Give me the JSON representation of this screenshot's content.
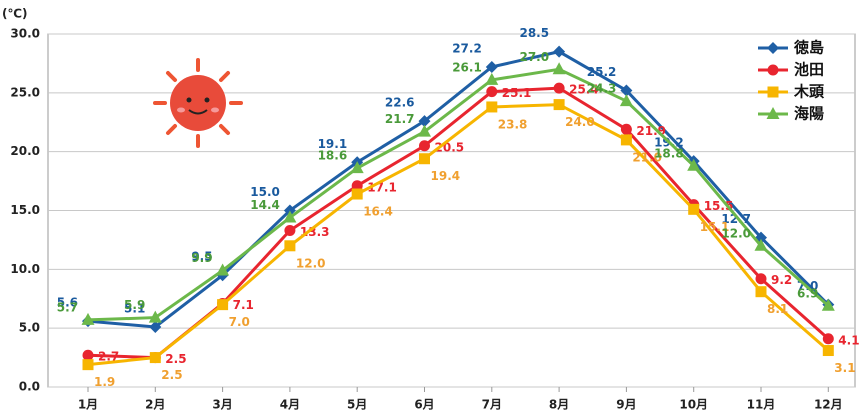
{
  "chart_data": {
    "type": "line",
    "y_label": "(℃)",
    "categories": [
      "1月",
      "2月",
      "3月",
      "4月",
      "5月",
      "6月",
      "7月",
      "8月",
      "9月",
      "10月",
      "11月",
      "12月"
    ],
    "ylim": [
      0,
      30
    ],
    "yticks": [
      {
        "value": 0,
        "label": "0.0"
      },
      {
        "value": 5,
        "label": "5.0"
      },
      {
        "value": 10,
        "label": "10.0"
      },
      {
        "value": 15,
        "label": "15.0"
      },
      {
        "value": 20,
        "label": "20.0"
      },
      {
        "value": 25,
        "label": "25.0"
      },
      {
        "value": 30,
        "label": "30.0"
      }
    ],
    "grid": true,
    "legend": "upper right",
    "series": [
      {
        "name": "徳島",
        "color": "#1f5fa5",
        "marker": "diamond",
        "values": [
          5.6,
          5.1,
          9.5,
          15.0,
          19.1,
          22.6,
          27.2,
          28.5,
          25.2,
          19.2,
          12.7,
          7.0
        ],
        "value_labels": [
          "5.6",
          "5.1",
          "9.5",
          "15.0",
          "19.1",
          "22.6",
          "27.2",
          "28.5",
          "25.2",
          "19.2",
          "12.7",
          "7.0"
        ]
      },
      {
        "name": "池田",
        "color": "#e8252f",
        "marker": "circle",
        "values": [
          2.7,
          2.5,
          7.1,
          13.3,
          17.1,
          20.5,
          25.1,
          25.4,
          21.9,
          15.5,
          9.2,
          4.1
        ],
        "value_labels": [
          "2.7",
          "2.5",
          "7.1",
          "13.3",
          "17.1",
          "20.5",
          "25.1",
          "25.4",
          "21.9",
          "15.5",
          "9.2",
          "4.1"
        ]
      },
      {
        "name": "木頭",
        "color": "#f7b500",
        "marker": "square",
        "values": [
          1.9,
          2.5,
          7.0,
          12.0,
          16.4,
          19.4,
          23.8,
          24.0,
          21.0,
          15.1,
          8.1,
          3.1
        ],
        "value_labels": [
          "1.9",
          "2.5",
          "7.0",
          "12.0",
          "16.4",
          "19.4",
          "23.8",
          "24.0",
          "21.0",
          "15.1",
          "8.1",
          "3.1"
        ]
      },
      {
        "name": "海陽",
        "color": "#6cb84a",
        "marker": "triangle",
        "values": [
          5.7,
          5.9,
          9.9,
          14.4,
          18.6,
          21.7,
          26.1,
          27.0,
          24.3,
          18.8,
          12.0,
          6.9
        ],
        "value_labels": [
          "5.7",
          "5.9",
          "9.9",
          "14.4",
          "18.6",
          "21.7",
          "26.1",
          "27.0",
          "24.3",
          "18.8",
          "12.0",
          "6.9"
        ]
      }
    ]
  }
}
